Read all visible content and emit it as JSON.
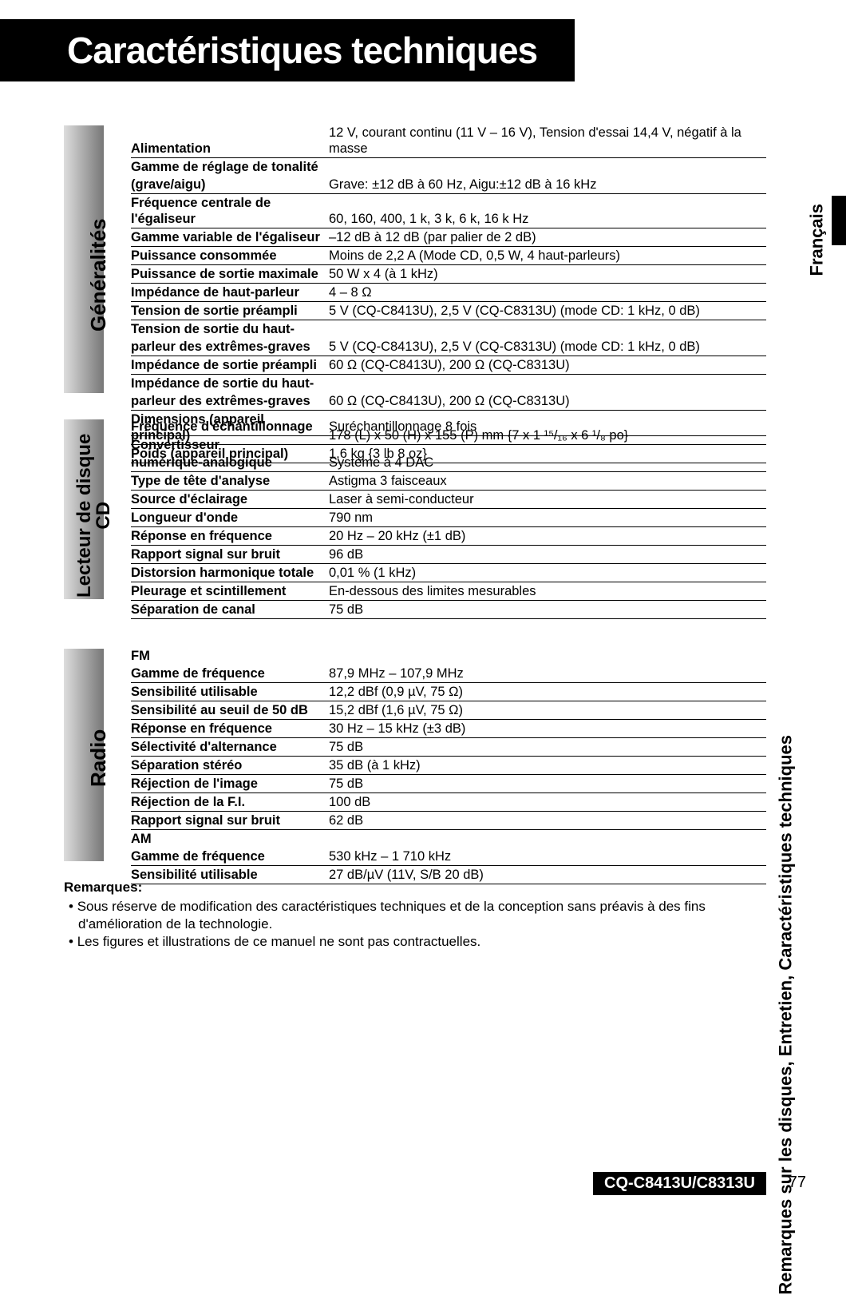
{
  "page_title": "Caractéristiques techniques",
  "language_tab": "Français",
  "side_breadcrumb": "Remarques sur les disques, Entretien, Caractéristiques techniques",
  "model_footer": "CQ-C8413U/C8313U",
  "page_number": "77",
  "sections": {
    "general": {
      "label": "Généralités",
      "rows": [
        {
          "label": "Alimentation",
          "value": "12 V, courant continu (11 V – 16 V), Tension d'essai 14,4 V, négatif à la masse",
          "bold": true
        },
        {
          "label": "Gamme de réglage de tonalité",
          "value": "",
          "noborder": true
        },
        {
          "label": " (grave/aigu)",
          "value": "Grave: ±12 dB à 60 Hz, Aigu:±12 dB à 16 kHz"
        },
        {
          "label": "Fréquence centrale de l'égaliseur",
          "value": "60, 160, 400, 1 k, 3 k, 6 k, 16 k Hz",
          "condensed": true
        },
        {
          "label": "Gamme variable de l'égaliseur",
          "value": "–12 dB à 12 dB (par palier de 2 dB)"
        },
        {
          "label": "Puissance consommée",
          "value": "Moins de 2,2 A (Mode CD, 0,5 W, 4 haut-parleurs)"
        },
        {
          "label": "Puissance de sortie maximale",
          "value": "50 W x 4 (à 1 kHz)"
        },
        {
          "label": "Impédance de haut-parleur",
          "value": "4 – 8 Ω"
        },
        {
          "label": "Tension de sortie préampli",
          "value": "5 V (CQ-C8413U), 2,5 V (CQ-C8313U) (mode CD: 1 kHz, 0 dB)"
        },
        {
          "label": "Tension de sortie du haut-",
          "value": "",
          "noborder": true
        },
        {
          "label": "parleur des extrêmes-graves",
          "value": "5 V (CQ-C8413U), 2,5 V (CQ-C8313U) (mode CD: 1 kHz, 0 dB)"
        },
        {
          "label": "Impédance de sortie préampli",
          "value": "60 Ω (CQ-C8413U), 200 Ω (CQ-C8313U)"
        },
        {
          "label": "Impédance de sortie du haut-",
          "value": "",
          "noborder": true
        },
        {
          "label": "parleur des extrêmes-graves",
          "value": "60 Ω (CQ-C8413U), 200 Ω (CQ-C8313U)"
        },
        {
          "label": "Dimensions (appareil principal)",
          "value": "178 (L) x 50 (H) x 155 (P) mm {7 x 1 ¹⁵/₁₆ x 6 ¹/₈ po}"
        },
        {
          "label": "Poids (appareil principal)",
          "value": "1,6 kg {3 lb 8 oz}"
        }
      ]
    },
    "cd": {
      "label_line1": "Lecteur de disque",
      "label_line2": "CD",
      "rows": [
        {
          "label": "Fréquence d'échantillonnage",
          "value": "Suréchantillonnage 8 fois"
        },
        {
          "label": "Convertisseur",
          "value": "",
          "noborder": true
        },
        {
          "label": "numérique-analogique",
          "value": "Système à 4 DAC"
        },
        {
          "label": "Type de tête d'analyse",
          "value": "Astigma 3 faisceaux"
        },
        {
          "label": "Source d'éclairage",
          "value": "Laser à semi-conducteur"
        },
        {
          "label": "Longueur d'onde",
          "value": "790 nm"
        },
        {
          "label": "Réponse en fréquence",
          "value": "20 Hz – 20 kHz (±1 dB)"
        },
        {
          "label": "Rapport signal sur bruit",
          "value": "96 dB"
        },
        {
          "label": "Distorsion harmonique totale",
          "value": "0,01 % (1 kHz)"
        },
        {
          "label": "Pleurage et scintillement",
          "value": "En-dessous des limites mesurables"
        },
        {
          "label": "Séparation de canal",
          "value": "75 dB"
        }
      ]
    },
    "radio": {
      "label": "Radio",
      "fm_label": "FM",
      "fm_rows": [
        {
          "label": "Gamme de fréquence",
          "value": "87,9 MHz – 107,9 MHz"
        },
        {
          "label": "Sensibilité utilisable",
          "value": "12,2 dBf (0,9 µV, 75 Ω)"
        },
        {
          "label": "Sensibilité au seuil de 50 dB",
          "value": "15,2 dBf (1,6 µV, 75 Ω)"
        },
        {
          "label": "Réponse en fréquence",
          "value": "30 Hz – 15 kHz (±3 dB)"
        },
        {
          "label": "Sélectivité d'alternance",
          "value": "75 dB"
        },
        {
          "label": "Séparation stéréo",
          "value": "35 dB (à 1 kHz)"
        },
        {
          "label": "Réjection de l'image",
          "value": "75 dB"
        },
        {
          "label": "Réjection de la F.I.",
          "value": "100 dB"
        },
        {
          "label": "Rapport signal sur bruit",
          "value": "62 dB"
        }
      ],
      "am_label": "AM",
      "am_rows": [
        {
          "label": "Gamme de fréquence",
          "value": "530 kHz – 1 710 kHz"
        },
        {
          "label": "Sensibilité utilisable",
          "value": "27 dB/µV (11V, S/B 20 dB)"
        }
      ]
    }
  },
  "remarks": {
    "heading": "Remarques:",
    "items": [
      "Sous réserve de modification des caractéristiques techniques et de la conception sans préavis à des fins d'amélioration de la technologie.",
      "Les figures et illustrations de ce manuel ne sont pas contractuelles."
    ]
  },
  "colors": {
    "black": "#000000",
    "white": "#ffffff",
    "bar_light": "#dddddd",
    "bar_dark": "#777777"
  }
}
